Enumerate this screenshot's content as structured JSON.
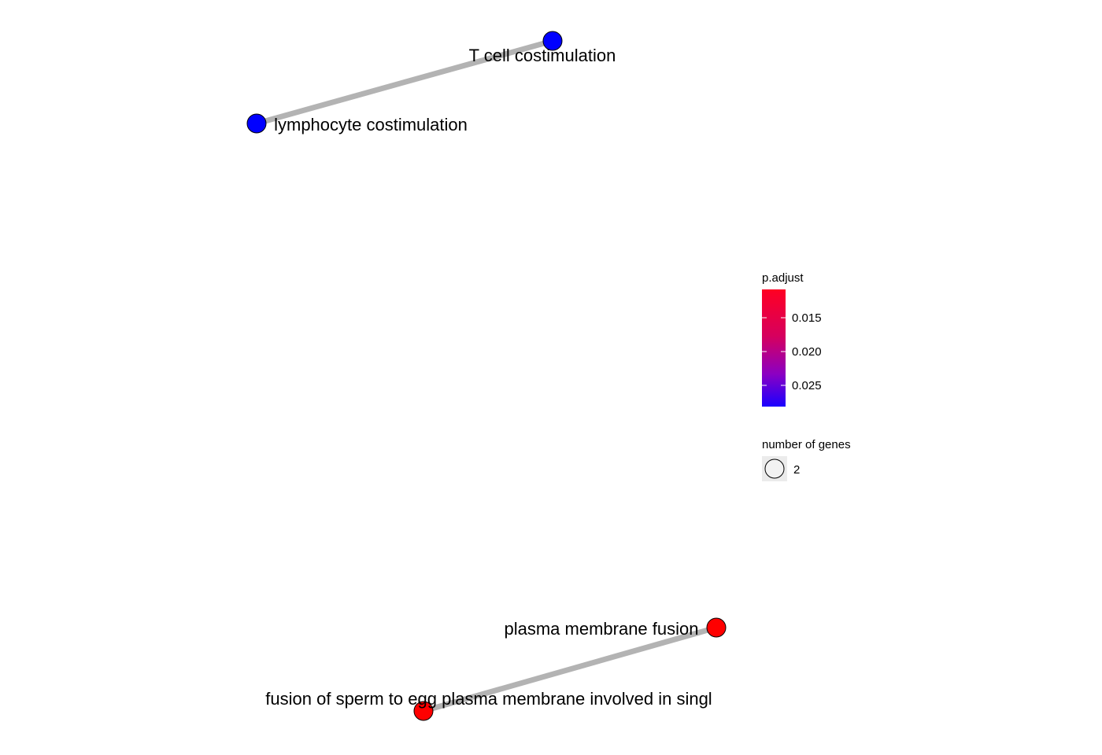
{
  "diagram": {
    "type": "enrichment-map",
    "nodes": [
      {
        "id": "t-cell",
        "label": "T cell costimulation",
        "color": "#0000FF"
      },
      {
        "id": "lymphocyte",
        "label": "lymphocyte costimulation",
        "color": "#0000FF"
      },
      {
        "id": "plasma",
        "label": "plasma membrane fusion",
        "color": "#FF0000"
      },
      {
        "id": "sperm",
        "label": "fusion of sperm to egg plasma membrane involved in singl",
        "color": "#FF0000"
      }
    ],
    "edges": [
      {
        "source": "t-cell",
        "target": "lymphocyte"
      },
      {
        "source": "plasma",
        "target": "sperm"
      }
    ],
    "edge_color": "#B3B3B3"
  },
  "legend": {
    "color": {
      "title": "p.adjust",
      "ticks": [
        "0.015",
        "0.020",
        "0.025"
      ],
      "low_color": "#FF0000",
      "mid_color": "#CC0066",
      "high_color": "#0000FF"
    },
    "size": {
      "title": "number of genes",
      "entries": [
        "2"
      ]
    }
  }
}
